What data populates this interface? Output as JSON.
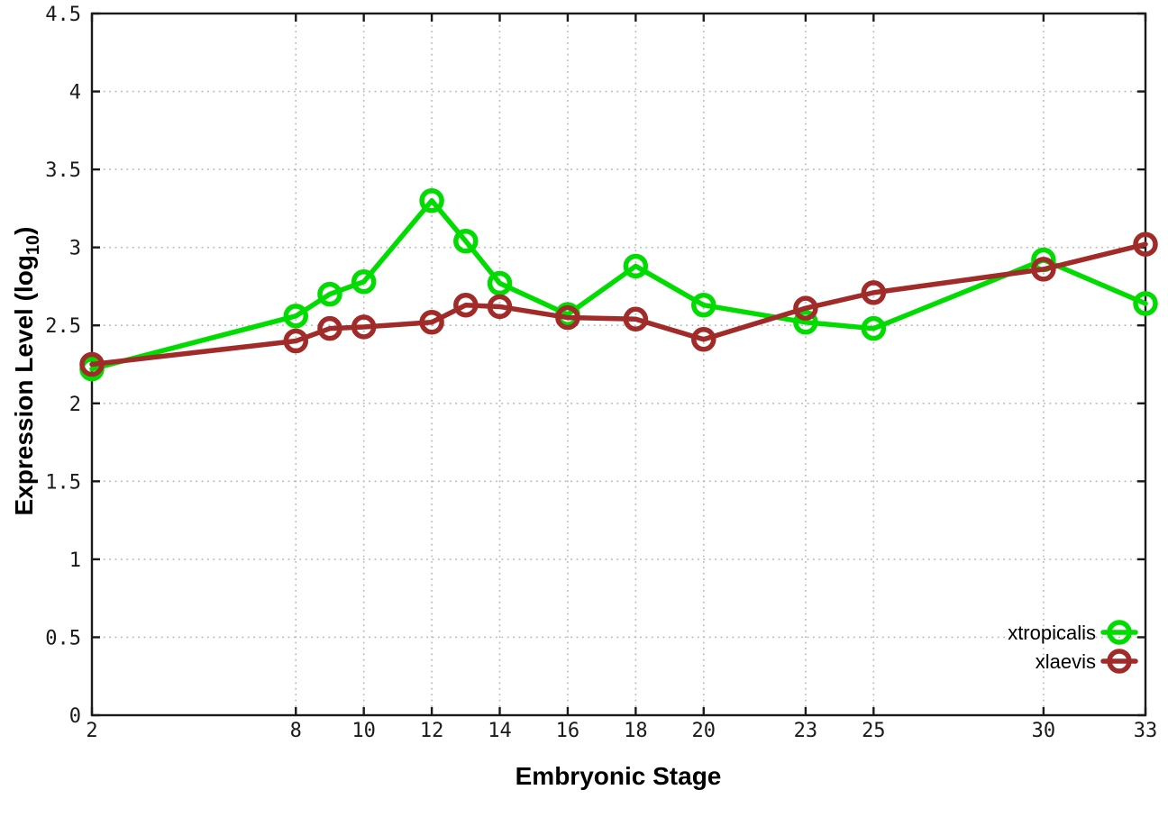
{
  "chart_data": {
    "type": "line",
    "title": "",
    "xlabel": "Embryonic Stage",
    "ylabel": "Expression Level (log10)",
    "ylabel_parts": {
      "main": "Expression Level (log",
      "sub": "10",
      "end": ")"
    },
    "xlim": [
      2,
      33
    ],
    "ylim": [
      0,
      4.5
    ],
    "grid": true,
    "legend_position": "inside-bottom-right",
    "x": [
      2,
      8,
      9,
      10,
      12,
      13,
      14,
      16,
      18,
      20,
      23,
      25,
      30,
      33
    ],
    "series": [
      {
        "name": "xtropicalis",
        "color": "#00dc00",
        "values": [
          2.22,
          2.56,
          2.7,
          2.78,
          3.3,
          3.04,
          2.77,
          2.57,
          2.88,
          2.63,
          2.52,
          2.48,
          2.92,
          2.64
        ]
      },
      {
        "name": "xlaevis",
        "color": "#a02b28",
        "values": [
          2.25,
          2.4,
          2.48,
          2.49,
          2.52,
          2.63,
          2.62,
          2.55,
          2.54,
          2.41,
          2.61,
          2.71,
          2.86,
          3.02
        ]
      }
    ],
    "xtick_values": [
      2,
      8,
      10,
      12,
      14,
      16,
      18,
      20,
      23,
      25,
      30,
      33
    ],
    "xtick_labels": [
      "2",
      "8",
      "10",
      "12",
      "14",
      "16",
      "18",
      "20",
      "23",
      "25",
      "30",
      "33"
    ],
    "ytick_values": [
      0,
      0.5,
      1,
      1.5,
      2,
      2.5,
      3,
      3.5,
      4,
      4.5
    ],
    "ytick_labels": [
      "0",
      "0.5",
      "1",
      "1.5",
      "2",
      "2.5",
      "3",
      "3.5",
      "4",
      "4.5"
    ],
    "colors": {
      "axis": "#1a1a1a",
      "grid": "#b8b8b8",
      "tick_label": "#1a1a1a",
      "legend_text": "#000000",
      "background": "#ffffff"
    }
  }
}
